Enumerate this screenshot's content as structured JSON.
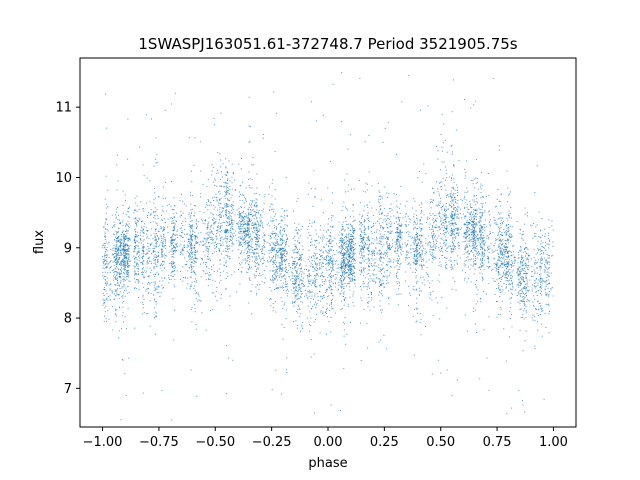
{
  "chart_data": {
    "type": "scatter",
    "title": "1SWASPJ163051.61-372748.7 Period 3521905.75s",
    "xlabel": "phase",
    "ylabel": "flux",
    "xlim": [
      -1.1,
      1.1
    ],
    "ylim": [
      6.45,
      11.7
    ],
    "x_ticks": [
      -1.0,
      -0.75,
      -0.5,
      -0.25,
      0.0,
      0.25,
      0.5,
      0.75,
      1.0
    ],
    "x_tick_labels": [
      "−1.00",
      "−0.75",
      "−0.50",
      "−0.25",
      "0.00",
      "0.25",
      "0.50",
      "0.75",
      "1.00"
    ],
    "y_ticks": [
      7,
      8,
      9,
      10,
      11
    ],
    "y_tick_labels": [
      "7",
      "8",
      "9",
      "10",
      "11"
    ],
    "grid": false,
    "marker_color": "#1f77b4",
    "profile": {
      "x": [
        0.0,
        0.05,
        0.1,
        0.15,
        0.2,
        0.25,
        0.3,
        0.35,
        0.4,
        0.45,
        0.5,
        0.55,
        0.6,
        0.65,
        0.7,
        0.75,
        0.8,
        0.85,
        0.9,
        0.95,
        1.0
      ],
      "y": [
        8.7,
        8.8,
        8.9,
        9.0,
        8.9,
        9.0,
        9.1,
        9.0,
        9.0,
        9.0,
        9.3,
        9.4,
        9.3,
        9.2,
        9.1,
        8.9,
        8.9,
        8.6,
        8.6,
        8.6,
        8.7
      ]
    }
  }
}
